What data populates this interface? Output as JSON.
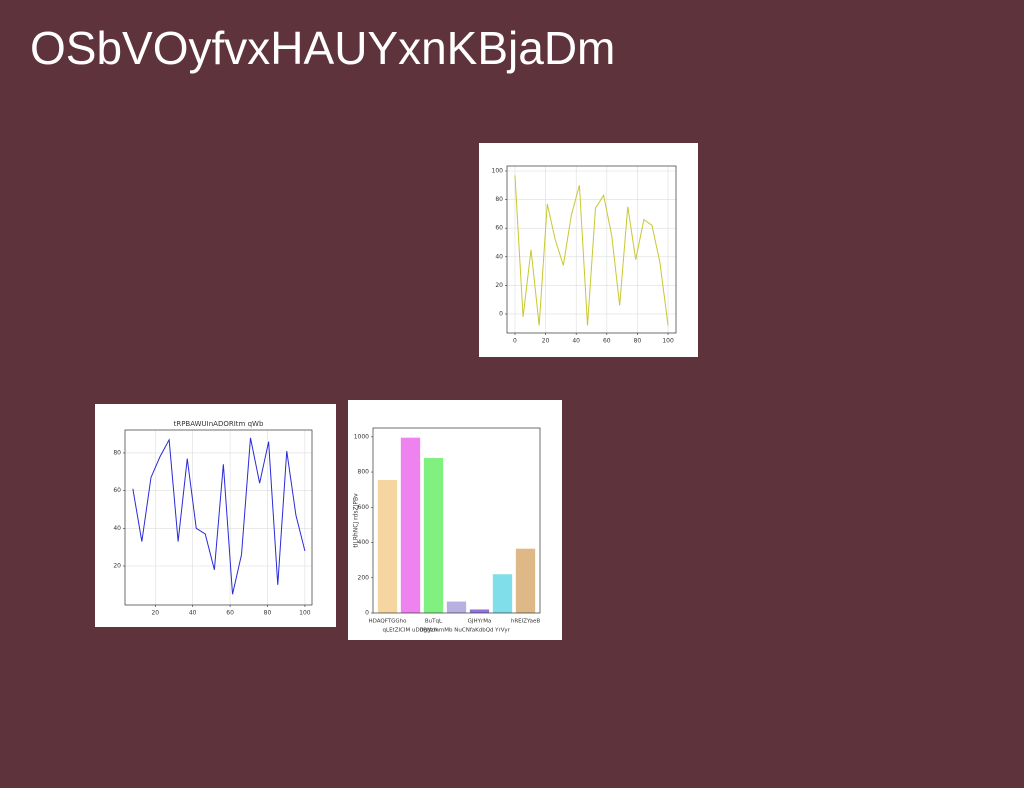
{
  "title": "OSbVOyfvxHAUYxnKBjaDm",
  "chart_data": [
    {
      "type": "line",
      "grid": true,
      "color": "#c8c832",
      "x": [
        0,
        5.3,
        10.5,
        15.8,
        21.1,
        26.3,
        31.6,
        36.8,
        42.1,
        47.4,
        52.6,
        57.9,
        63.2,
        68.4,
        73.7,
        78.9,
        84.2,
        89.5,
        94.7,
        100
      ],
      "values": [
        97,
        -2,
        45,
        -8,
        77,
        52,
        34,
        69,
        90,
        -8,
        74,
        83,
        55,
        6,
        75,
        38,
        66,
        62,
        36,
        -8
      ],
      "xlim": [
        -5.2,
        105.2
      ],
      "ylim": [
        -13.3,
        103.5
      ],
      "xticks": [
        0,
        20,
        40,
        60,
        80,
        100
      ],
      "yticks": [
        0,
        20,
        40,
        60,
        80,
        100
      ]
    },
    {
      "type": "line",
      "grid": true,
      "color": "#2a2ad8",
      "title": "tRPBAWUInADORItm qWb",
      "x": [
        8,
        12.8,
        17.7,
        22.5,
        27.4,
        32.2,
        37.1,
        41.9,
        46.7,
        51.6,
        56.4,
        61.3,
        66.1,
        70.9,
        75.8,
        80.6,
        85.5,
        90.3,
        95.2,
        100
      ],
      "values": [
        61,
        33,
        67,
        78,
        87,
        33,
        77,
        40,
        37,
        18,
        74,
        5,
        26,
        88,
        64,
        86,
        10,
        81,
        47,
        28
      ],
      "xlim": [
        3.8,
        103.8
      ],
      "ylim": [
        -0.7,
        92.2
      ],
      "xticks": [
        20,
        40,
        60,
        80,
        100
      ],
      "yticks": [
        20,
        40,
        60,
        80
      ]
    },
    {
      "type": "bar",
      "grid": false,
      "y_label": "tILRhNCJ rdsZJPBv",
      "categories": [
        "HDAQFTGGho",
        "qLEtZICIM uDdBMdk",
        "BuTqL",
        "DggzmmMb NuCNfaKdbQd",
        "GJHYrMa",
        "YrVyr",
        "hREIZYaeB"
      ],
      "values": [
        755,
        995,
        880,
        65,
        20,
        220,
        365
      ],
      "colors": [
        "#f5d5a0",
        "#ee82ee",
        "#80f080",
        "#b8b0e0",
        "#9370db",
        "#80deea",
        "#deb887"
      ],
      "ylim": [
        0,
        1050
      ],
      "yticks": [
        0,
        200,
        400,
        600,
        800,
        1000
      ]
    }
  ]
}
